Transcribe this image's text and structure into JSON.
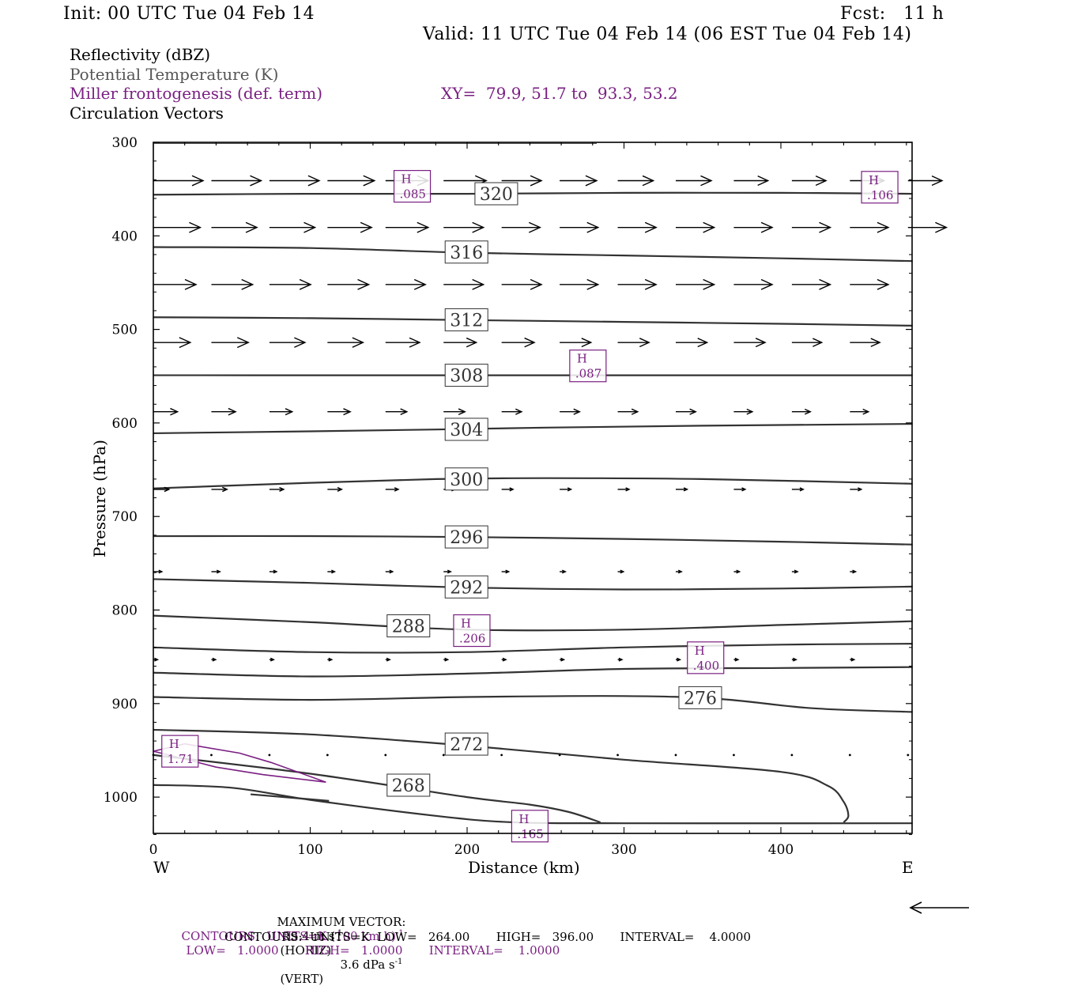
{
  "header": {
    "init": "Init: 00 UTC Tue 04 Feb 14",
    "fcst": "Fcst:   11 h",
    "valid": "Valid: 11 UTC Tue 04 Feb 14 (06 EST Tue 04 Feb 14)"
  },
  "legend": {
    "line1": "Reflectivity (dBZ)",
    "line2": "Potential Temperature (K)",
    "line3": "Miller frontogenesis (def. term)",
    "xy": "XY=  79.9, 51.7 to  93.3, 53.2",
    "line4": "Circulation Vectors"
  },
  "footer": {
    "max_vector_label": "MAXIMUM VECTOR:",
    "max_vector_horiz": "55.4 m s",
    "max_vector_horiz_exp": "-1",
    "max_vector_horiz_tail": "(HORIZ)",
    "max_vector_vert": "3.6 dPa s",
    "max_vector_vert_exp": "-1",
    "max_vector_vert_tail": "(VERT)",
    "contours1_a": "CONTOURS:  UNITS=K (100 km h)",
    "contours1_exp": "-1",
    "contours1_b": "LOW=   1.0000       HIGH=   1.0000       INTERVAL=    1.0000",
    "contours2": "CONTOURS:  UNITS=K  LOW=   264.00       HIGH=   396.00       INTERVAL=    4.0000"
  },
  "colors": {
    "frontogenesis": "#7a1f82",
    "theta": "#333333",
    "axes": "#000000"
  },
  "chart_data": {
    "type": "line",
    "title": "",
    "xlabel": "Distance (km)",
    "ylabel": "Pressure (hPa)",
    "xlim": [
      0,
      484
    ],
    "ylim": [
      300,
      1040
    ],
    "y_inverted": true,
    "x_ticks": [
      0,
      100,
      200,
      300,
      400
    ],
    "y_ticks": [
      300,
      400,
      500,
      600,
      700,
      800,
      900,
      1000
    ],
    "x_end_labels": {
      "left": "W",
      "right": "E"
    },
    "isentropes": [
      {
        "name": "320",
        "label_x": 205,
        "points": [
          [
            0,
            356
          ],
          [
            100,
            355
          ],
          [
            200,
            355
          ],
          [
            300,
            354
          ],
          [
            400,
            354
          ],
          [
            484,
            355
          ]
        ]
      },
      {
        "name": "316",
        "label_x": 186,
        "points": [
          [
            0,
            412
          ],
          [
            100,
            413
          ],
          [
            200,
            418
          ],
          [
            300,
            421
          ],
          [
            400,
            424
          ],
          [
            484,
            427
          ]
        ]
      },
      {
        "name": "312",
        "label_x": 186,
        "points": [
          [
            0,
            487
          ],
          [
            100,
            488
          ],
          [
            200,
            490
          ],
          [
            300,
            492
          ],
          [
            400,
            494
          ],
          [
            484,
            496
          ]
        ]
      },
      {
        "name": "308",
        "label_x": 186,
        "points": [
          [
            0,
            549
          ],
          [
            100,
            549
          ],
          [
            200,
            549
          ],
          [
            300,
            549
          ],
          [
            400,
            549
          ],
          [
            484,
            549
          ]
        ]
      },
      {
        "name": "304",
        "label_x": 186,
        "points": [
          [
            0,
            611
          ],
          [
            100,
            609
          ],
          [
            180,
            607
          ],
          [
            250,
            605
          ],
          [
            350,
            603
          ],
          [
            484,
            601
          ]
        ]
      },
      {
        "name": "300",
        "label_x": 186,
        "points": [
          [
            0,
            670
          ],
          [
            100,
            664
          ],
          [
            180,
            660
          ],
          [
            250,
            659
          ],
          [
            350,
            660
          ],
          [
            484,
            665
          ]
        ]
      },
      {
        "name": "296",
        "label_x": 186,
        "points": [
          [
            0,
            721
          ],
          [
            100,
            721
          ],
          [
            200,
            722
          ],
          [
            300,
            724
          ],
          [
            400,
            727
          ],
          [
            484,
            730
          ]
        ]
      },
      {
        "name": "292",
        "label_x": 186,
        "points": [
          [
            0,
            767
          ],
          [
            100,
            771
          ],
          [
            200,
            776
          ],
          [
            300,
            778
          ],
          [
            400,
            777
          ],
          [
            484,
            775
          ]
        ]
      },
      {
        "name": "288",
        "label_x": 149,
        "points": [
          [
            0,
            806
          ],
          [
            100,
            813
          ],
          [
            200,
            821
          ],
          [
            300,
            821
          ],
          [
            400,
            816
          ],
          [
            484,
            812
          ]
        ]
      },
      {
        "name": "",
        "label_x": -1,
        "points": [
          [
            0,
            840
          ],
          [
            100,
            845
          ],
          [
            200,
            845
          ],
          [
            300,
            840
          ],
          [
            400,
            837
          ],
          [
            484,
            836
          ]
        ]
      },
      {
        "name": "",
        "label_x": -1,
        "points": [
          [
            0,
            867
          ],
          [
            100,
            871
          ],
          [
            200,
            868
          ],
          [
            300,
            863
          ],
          [
            400,
            862
          ],
          [
            484,
            861
          ]
        ]
      },
      {
        "name": "276",
        "label_x": 335,
        "points": [
          [
            0,
            893
          ],
          [
            100,
            896
          ],
          [
            200,
            893
          ],
          [
            300,
            892
          ],
          [
            360,
            895
          ],
          [
            420,
            905
          ],
          [
            484,
            909
          ]
        ]
      },
      {
        "name": "272",
        "label_x": 186,
        "points": [
          [
            0,
            928
          ],
          [
            100,
            933
          ],
          [
            200,
            945
          ],
          [
            300,
            960
          ],
          [
            400,
            973
          ],
          [
            430,
            988
          ],
          [
            440,
            1005
          ],
          [
            443,
            1020
          ],
          [
            440,
            1027
          ]
        ]
      },
      {
        "name": "268",
        "label_x": 149,
        "points": [
          [
            0,
            955
          ],
          [
            100,
            975
          ],
          [
            200,
            1000
          ],
          [
            240,
            1008
          ],
          [
            265,
            1016
          ],
          [
            285,
            1027
          ]
        ]
      },
      {
        "name": "",
        "label_x": -1,
        "points": [
          [
            0,
            987
          ],
          [
            50,
            990
          ],
          [
            100,
            1003
          ],
          [
            180,
            1020
          ],
          [
            230,
            1027
          ],
          [
            300,
            1028
          ],
          [
            484,
            1028
          ]
        ]
      },
      {
        "name": "",
        "label_x": -1,
        "points": [
          [
            62,
            997
          ],
          [
            112,
            1004
          ]
        ]
      }
    ],
    "frontogenesis_contours": [
      {
        "name": "1.0",
        "points": [
          [
            0,
            951
          ],
          [
            20,
            943
          ],
          [
            55,
            953
          ],
          [
            75,
            963
          ],
          [
            110,
            984
          ],
          [
            70,
            976
          ],
          [
            40,
            968
          ],
          [
            10,
            955
          ],
          [
            0,
            951
          ]
        ]
      }
    ],
    "frontogenesis_maxima": [
      {
        "label": "H",
        "value": ".085",
        "x": 165,
        "p": 347
      },
      {
        "label": "H",
        "value": ".106",
        "x": 463,
        "p": 348
      },
      {
        "label": "H",
        "value": ".087",
        "x": 277,
        "p": 539
      },
      {
        "label": "H",
        "value": ".206",
        "x": 203,
        "p": 822
      },
      {
        "label": "H",
        "value": ".400",
        "x": 352,
        "p": 851
      },
      {
        "label": "H",
        "value": "1.71",
        "x": 17,
        "p": 951
      },
      {
        "label": "H",
        "value": ".165",
        "x": 240,
        "p": 1031
      }
    ],
    "vectors": [
      {
        "p": 341,
        "x": [
          0,
          37,
          74,
          111,
          148,
          185,
          222,
          259,
          296,
          333,
          370,
          407,
          444,
          481
        ],
        "u": [
          35,
          35,
          35,
          33,
          30,
          30,
          28,
          26,
          25,
          25,
          24,
          24,
          24,
          24
        ]
      },
      {
        "p": 391,
        "x": [
          0,
          37,
          74,
          111,
          148,
          185,
          222,
          259,
          296,
          333,
          370,
          407,
          444,
          481
        ],
        "u": [
          33,
          32,
          32,
          31,
          30,
          28,
          27,
          27,
          27,
          27,
          27,
          27,
          27,
          27
        ]
      },
      {
        "p": 452,
        "x": [
          0,
          37,
          74,
          111,
          148,
          185,
          222,
          259,
          296,
          333,
          370,
          407,
          444
        ],
        "u": [
          30,
          29,
          29,
          29,
          28,
          28,
          28,
          27,
          27,
          27,
          27,
          27,
          27
        ]
      },
      {
        "p": 514,
        "x": [
          0,
          37,
          74,
          111,
          148,
          185,
          222,
          259,
          296,
          333,
          370,
          407,
          444
        ],
        "u": [
          26,
          26,
          25,
          25,
          24,
          23,
          23,
          22,
          22,
          22,
          22,
          21,
          21
        ]
      },
      {
        "p": 588,
        "x": [
          0,
          37,
          74,
          111,
          148,
          185,
          222,
          259,
          296,
          333,
          370,
          407,
          444
        ],
        "u": [
          17,
          17,
          16,
          16,
          15,
          15,
          14,
          14,
          14,
          14,
          13,
          13,
          13
        ]
      },
      {
        "p": 671,
        "x": [
          0,
          37,
          74,
          111,
          148,
          185,
          222,
          259,
          296,
          333,
          370,
          407,
          444
        ],
        "u": [
          11,
          11,
          10,
          10,
          9,
          8,
          8,
          8,
          8,
          8,
          8,
          8,
          8
        ]
      },
      {
        "p": 759,
        "x": [
          0,
          37,
          74,
          111,
          148,
          185,
          222,
          259,
          296,
          333,
          370,
          407,
          444
        ],
        "u": [
          6,
          6,
          5,
          5,
          5,
          5,
          5,
          4,
          4,
          4,
          4,
          4,
          4
        ]
      },
      {
        "p": 853,
        "x": [
          0,
          37,
          74,
          111,
          148,
          185,
          222,
          259,
          296,
          333,
          370,
          407,
          444
        ],
        "u": [
          3,
          3,
          3,
          3,
          3,
          3,
          3,
          3,
          3,
          3,
          3,
          3,
          3
        ]
      },
      {
        "p": 955,
        "x": [
          0,
          37,
          74,
          111,
          148,
          185,
          222,
          259,
          296,
          333,
          370,
          407,
          444,
          481
        ],
        "u": [
          1,
          1,
          1,
          1,
          1,
          1,
          1,
          1,
          1,
          1,
          1,
          1,
          1,
          1
        ]
      }
    ]
  }
}
